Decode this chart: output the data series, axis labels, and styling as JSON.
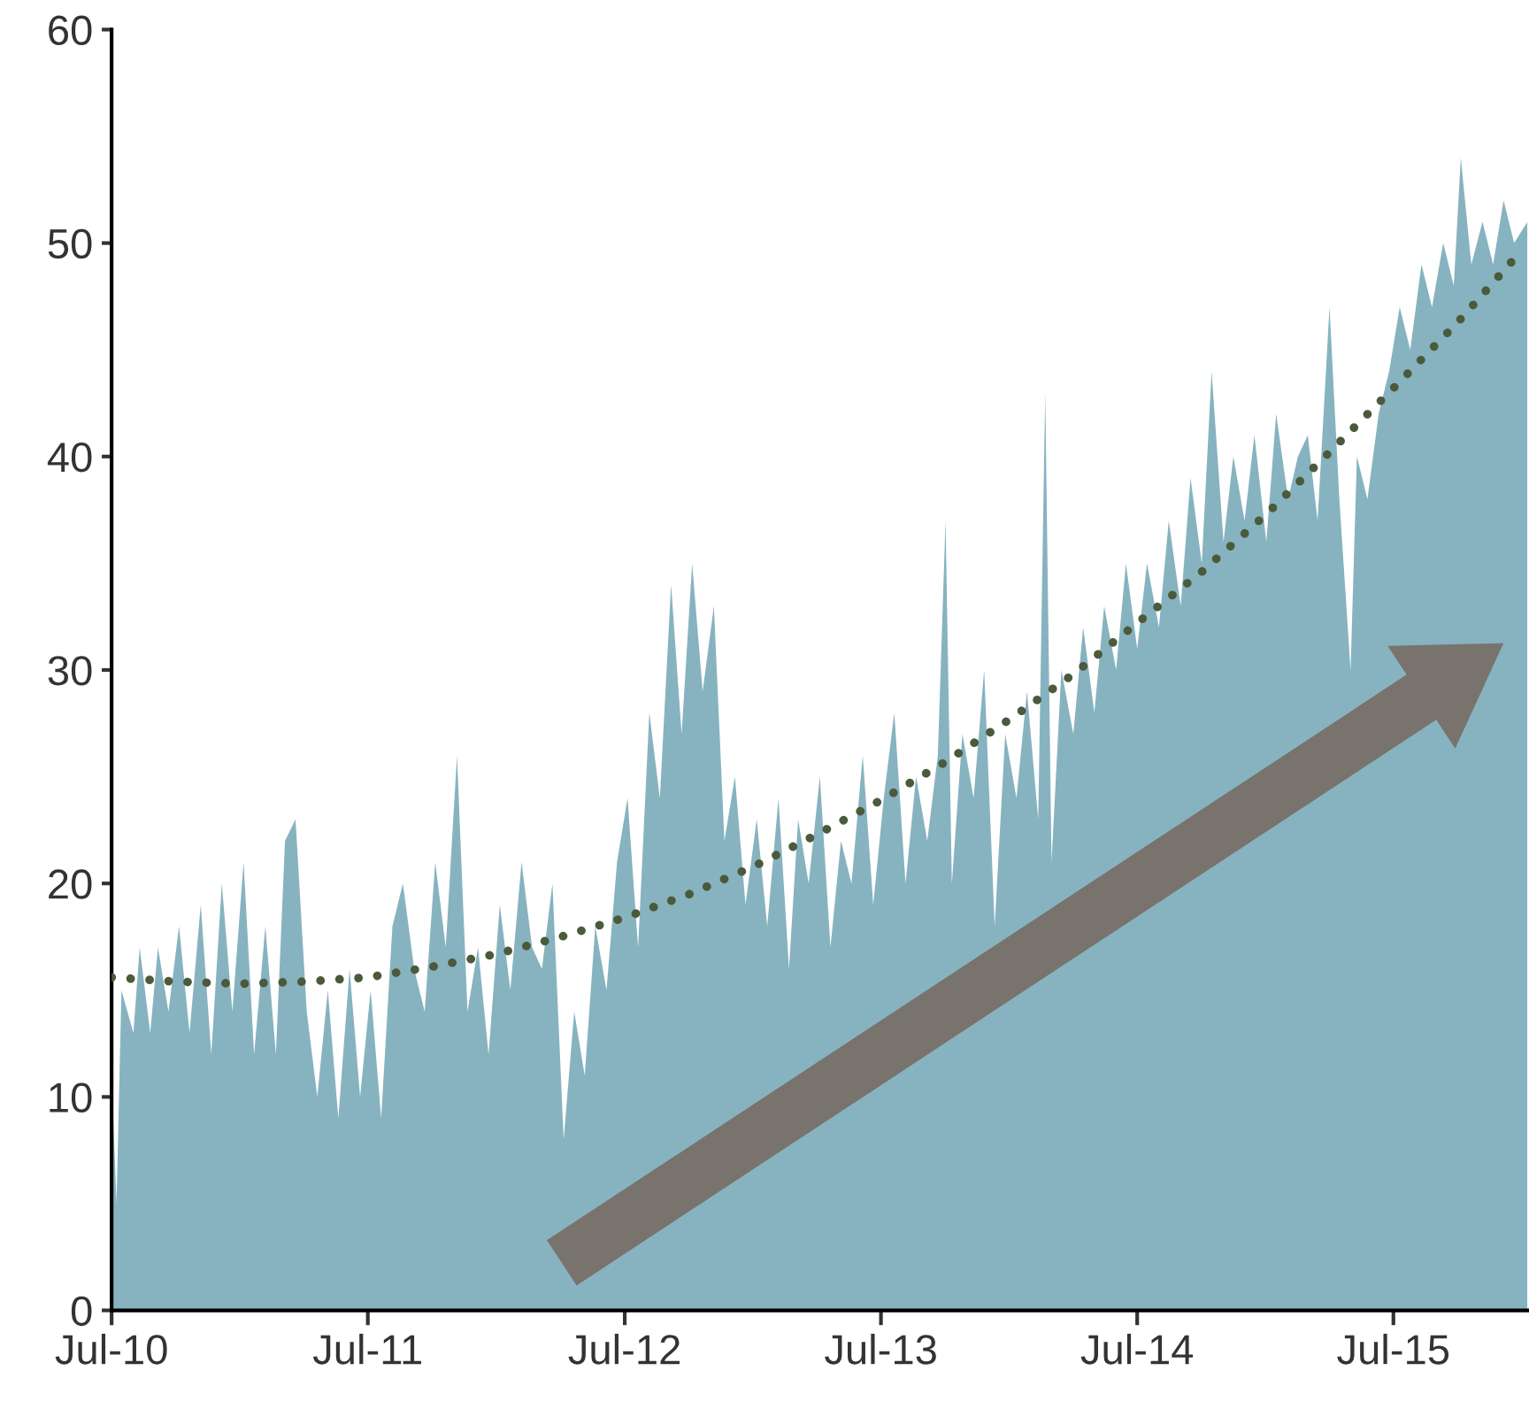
{
  "chart_data": {
    "type": "area",
    "xlim": [
      "2010-07-01",
      "2016-01-08"
    ],
    "xticks": [
      {
        "value": "2010-07-01",
        "label": "Jul-10"
      },
      {
        "value": "2011-07-01",
        "label": "Jul-11"
      },
      {
        "value": "2012-07-01",
        "label": "Jul-12"
      },
      {
        "value": "2013-07-01",
        "label": "Jul-13"
      },
      {
        "value": "2014-07-01",
        "label": "Jul-14"
      },
      {
        "value": "2015-07-01",
        "label": "Jul-15"
      }
    ],
    "ylim": [
      0,
      60
    ],
    "yticks": [
      0,
      10,
      20,
      30,
      40,
      50,
      60
    ],
    "series": [
      {
        "color": "#87b3c0",
        "x": [
          "2010-07-01",
          "2010-07-08",
          "2010-07-15",
          "2010-08-01",
          "2010-08-10",
          "2010-08-25",
          "2010-09-05",
          "2010-09-20",
          "2010-10-05",
          "2010-10-20",
          "2010-11-05",
          "2010-11-20",
          "2010-12-05",
          "2010-12-20",
          "2011-01-05",
          "2011-01-20",
          "2011-02-05",
          "2011-02-20",
          "2011-03-05",
          "2011-03-20",
          "2011-04-05",
          "2011-04-20",
          "2011-05-05",
          "2011-05-20",
          "2011-06-05",
          "2011-06-20",
          "2011-07-05",
          "2011-07-20",
          "2011-08-05",
          "2011-08-20",
          "2011-09-05",
          "2011-09-20",
          "2011-10-05",
          "2011-10-20",
          "2011-11-05",
          "2011-11-20",
          "2011-12-05",
          "2011-12-20",
          "2012-01-05",
          "2012-01-20",
          "2012-02-05",
          "2012-02-20",
          "2012-03-05",
          "2012-03-20",
          "2012-04-05",
          "2012-04-20",
          "2012-05-05",
          "2012-05-20",
          "2012-06-05",
          "2012-06-20",
          "2012-07-05",
          "2012-07-20",
          "2012-08-05",
          "2012-08-20",
          "2012-09-05",
          "2012-09-20",
          "2012-10-05",
          "2012-10-20",
          "2012-11-05",
          "2012-11-20",
          "2012-12-05",
          "2012-12-20",
          "2013-01-05",
          "2013-01-20",
          "2013-02-05",
          "2013-02-20",
          "2013-03-05",
          "2013-03-20",
          "2013-04-05",
          "2013-04-20",
          "2013-05-05",
          "2013-05-20",
          "2013-06-05",
          "2013-06-20",
          "2013-07-05",
          "2013-07-20",
          "2013-08-05",
          "2013-08-20",
          "2013-09-05",
          "2013-09-20",
          "2013-10-01",
          "2013-10-10",
          "2013-10-25",
          "2013-11-10",
          "2013-11-25",
          "2013-12-10",
          "2013-12-25",
          "2014-01-10",
          "2014-01-25",
          "2014-02-10",
          "2014-02-20",
          "2014-03-01",
          "2014-03-15",
          "2014-04-01",
          "2014-04-15",
          "2014-05-01",
          "2014-05-15",
          "2014-06-01",
          "2014-06-15",
          "2014-07-01",
          "2014-07-15",
          "2014-08-01",
          "2014-08-15",
          "2014-09-01",
          "2014-09-15",
          "2014-10-01",
          "2014-10-15",
          "2014-11-01",
          "2014-11-15",
          "2014-12-01",
          "2014-12-15",
          "2015-01-01",
          "2015-01-15",
          "2015-02-01",
          "2015-02-15",
          "2015-03-01",
          "2015-03-15",
          "2015-04-01",
          "2015-04-15",
          "2015-05-01",
          "2015-05-10",
          "2015-05-25",
          "2015-06-10",
          "2015-06-25",
          "2015-07-10",
          "2015-07-25",
          "2015-08-10",
          "2015-08-25",
          "2015-09-10",
          "2015-09-25",
          "2015-10-05",
          "2015-10-20",
          "2015-11-05",
          "2015-11-20",
          "2015-12-05",
          "2015-12-20",
          "2016-01-08"
        ],
        "values": [
          11,
          5,
          15,
          13,
          17,
          13,
          17,
          14,
          18,
          13,
          19,
          12,
          20,
          14,
          21,
          12,
          18,
          12,
          22,
          23,
          14,
          10,
          15,
          9,
          16,
          10,
          15,
          9,
          18,
          20,
          16,
          14,
          21,
          17,
          26,
          14,
          17,
          12,
          19,
          15,
          21,
          17,
          16,
          20,
          8,
          14,
          11,
          18,
          15,
          21,
          24,
          17,
          28,
          24,
          34,
          27,
          35,
          29,
          33,
          22,
          25,
          19,
          23,
          18,
          24,
          16,
          23,
          20,
          25,
          17,
          22,
          20,
          26,
          19,
          24,
          28,
          20,
          25,
          22,
          26,
          37,
          20,
          27,
          24,
          30,
          18,
          27,
          24,
          29,
          23,
          43,
          21,
          30,
          27,
          32,
          28,
          33,
          30,
          35,
          31,
          35,
          32,
          37,
          33,
          39,
          35,
          44,
          36,
          40,
          37,
          41,
          36,
          42,
          38,
          40,
          41,
          37,
          47,
          38,
          30,
          40,
          38,
          42,
          44,
          47,
          45,
          49,
          47,
          50,
          48,
          54,
          49,
          51,
          49,
          52,
          50,
          51
        ]
      },
      {
        "type": "line",
        "line_style": "dotted",
        "color": "#4b5a3b",
        "x": [
          "2010-07-01",
          "2010-10-01",
          "2011-01-01",
          "2011-04-01",
          "2011-07-01",
          "2011-10-01",
          "2012-01-01",
          "2012-04-01",
          "2012-07-01",
          "2012-10-01",
          "2013-01-01",
          "2013-04-01",
          "2013-07-01",
          "2013-10-01",
          "2014-01-01",
          "2014-04-01",
          "2014-07-01",
          "2014-10-01",
          "2015-01-01",
          "2015-04-01",
          "2015-07-01",
          "2015-10-01",
          "2016-01-01"
        ],
        "values": [
          15.6,
          15.4,
          15.3,
          15.4,
          15.6,
          16.1,
          16.7,
          17.5,
          18.4,
          19.5,
          20.8,
          22.3,
          23.9,
          25.7,
          27.7,
          29.8,
          32.2,
          34.6,
          37.3,
          40.2,
          43.2,
          46.3,
          49.7
        ]
      }
    ]
  }
}
